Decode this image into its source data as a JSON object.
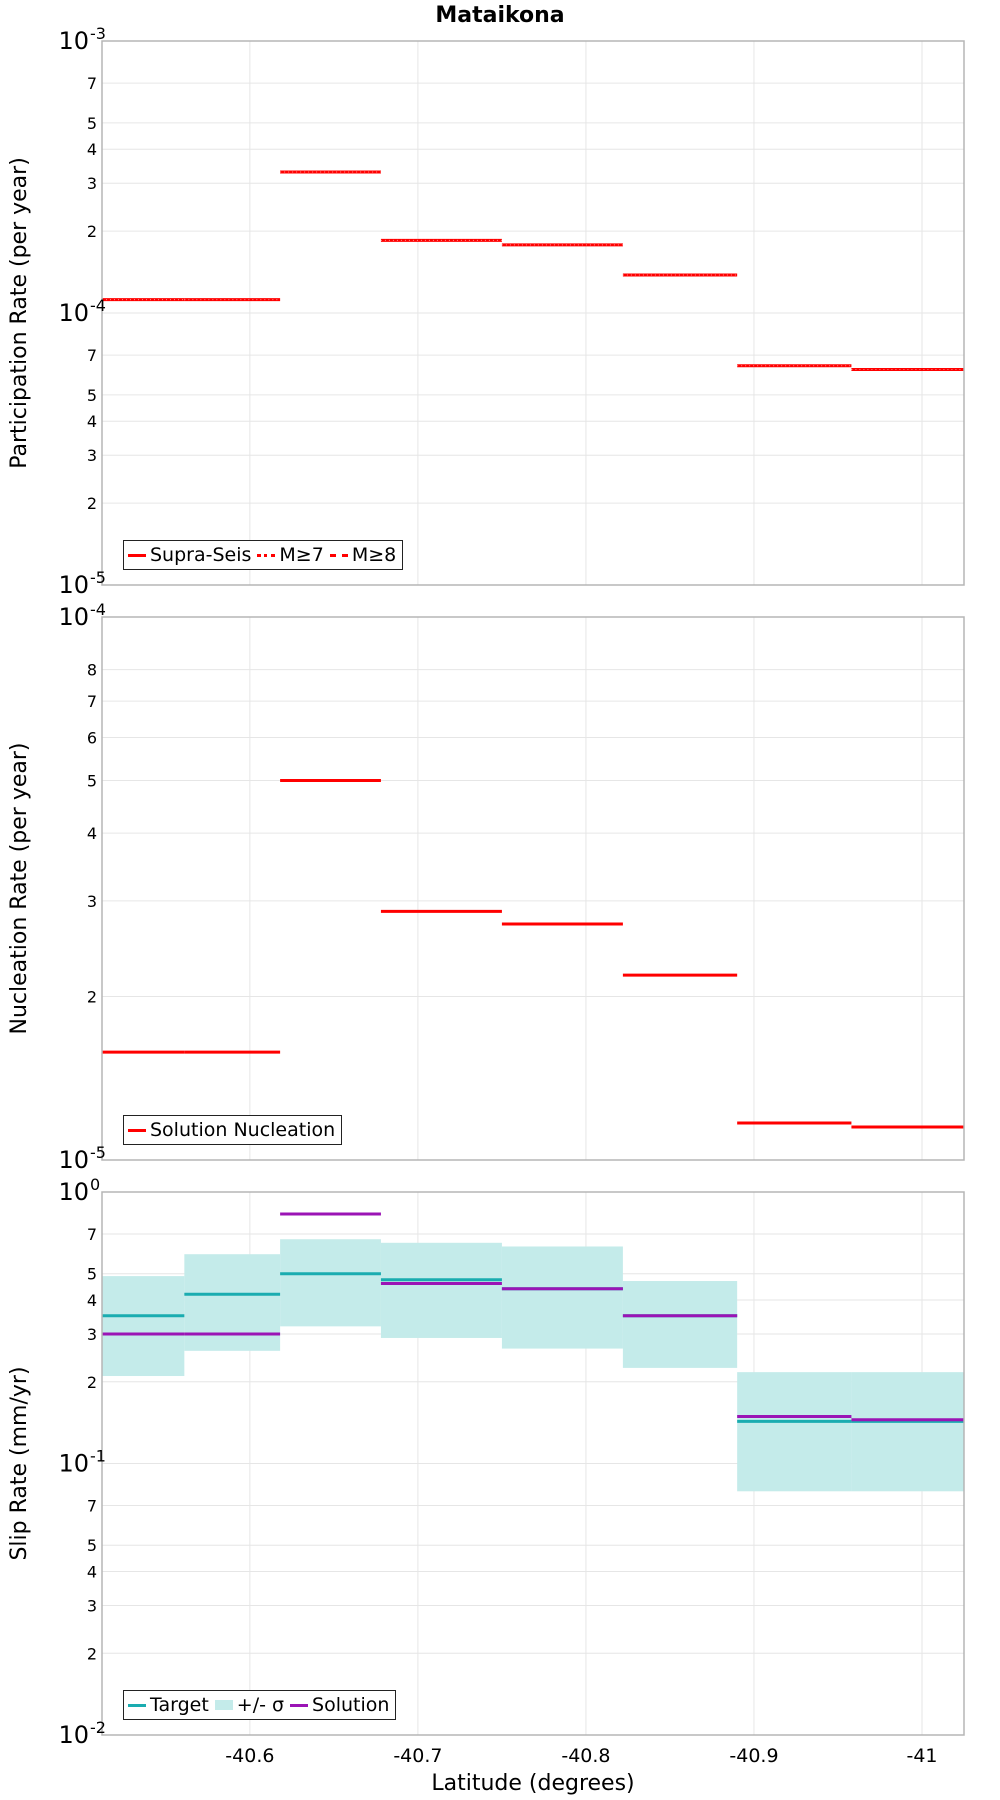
{
  "title": "Mataikona",
  "colors": {
    "red": "#ff0000",
    "target": "#1aacb0",
    "band": "#c4ebea",
    "solution": "#9b14b5",
    "grid": "#e6e6e6",
    "frame": "#b5b5b5"
  },
  "x_axis": {
    "label": "Latitude (degrees)",
    "range": [
      -40.512,
      -41.025
    ],
    "ticks": [
      -40.6,
      -40.7,
      -40.8,
      -40.9,
      -41
    ],
    "tick_labels": [
      "-40.6",
      "-40.7",
      "-40.8",
      "-40.9",
      "-41"
    ]
  },
  "chart_data": [
    {
      "type": "line",
      "step": true,
      "ylabel": "Participation Rate (per year)",
      "yscale": "log",
      "ylim": [
        1e-05,
        0.001
      ],
      "major_ticks": [
        {
          "v": 0.001,
          "base": "10",
          "exp": "-3"
        },
        {
          "v": 0.0001,
          "base": "10",
          "exp": "-4"
        },
        {
          "v": 1e-05,
          "base": "10",
          "exp": "-5"
        }
      ],
      "minor_ticks": [
        {
          "v": 0.0007,
          "label": "7"
        },
        {
          "v": 0.0005,
          "label": "5"
        },
        {
          "v": 0.0004,
          "label": "4"
        },
        {
          "v": 0.0003,
          "label": "3"
        },
        {
          "v": 0.0002,
          "label": "2"
        },
        {
          "v": 7e-05,
          "label": "7"
        },
        {
          "v": 5e-05,
          "label": "5"
        },
        {
          "v": 4e-05,
          "label": "4"
        },
        {
          "v": 3e-05,
          "label": "3"
        },
        {
          "v": 2e-05,
          "label": "2"
        }
      ],
      "segments": [
        {
          "x0": -40.512,
          "x1": -40.561,
          "y": 0.000112
        },
        {
          "x0": -40.561,
          "x1": -40.618,
          "y": 0.000112
        },
        {
          "x0": -40.618,
          "x1": -40.678,
          "y": 0.00033
        },
        {
          "x0": -40.678,
          "x1": -40.75,
          "y": 0.000185
        },
        {
          "x0": -40.75,
          "x1": -40.822,
          "y": 0.000178
        },
        {
          "x0": -40.822,
          "x1": -40.89,
          "y": 0.000138
        },
        {
          "x0": -40.89,
          "x1": -40.958,
          "y": 6.4e-05
        },
        {
          "x0": -40.958,
          "x1": -41.025,
          "y": 6.2e-05
        }
      ],
      "series": [
        {
          "name": "Supra-Seis",
          "style": "solid"
        },
        {
          "name": "M≥7",
          "style": "dotted"
        },
        {
          "name": "M≥8",
          "style": "dashdot"
        }
      ],
      "legend": "bottom-left",
      "grid": true
    },
    {
      "type": "line",
      "step": true,
      "ylabel": "Nucleation Rate (per year)",
      "yscale": "log",
      "ylim": [
        1e-05,
        0.0001
      ],
      "major_ticks": [
        {
          "v": 0.0001,
          "base": "10",
          "exp": "-4"
        },
        {
          "v": 1e-05,
          "base": "10",
          "exp": "-5"
        }
      ],
      "minor_ticks": [
        {
          "v": 8e-05,
          "label": "8"
        },
        {
          "v": 7e-05,
          "label": "7"
        },
        {
          "v": 6e-05,
          "label": "6"
        },
        {
          "v": 5e-05,
          "label": "5"
        },
        {
          "v": 4e-05,
          "label": "4"
        },
        {
          "v": 3e-05,
          "label": "3"
        },
        {
          "v": 2e-05,
          "label": "2"
        }
      ],
      "segments": [
        {
          "x0": -40.512,
          "x1": -40.561,
          "y": 1.58e-05
        },
        {
          "x0": -40.561,
          "x1": -40.618,
          "y": 1.58e-05
        },
        {
          "x0": -40.618,
          "x1": -40.678,
          "y": 5e-05
        },
        {
          "x0": -40.678,
          "x1": -40.75,
          "y": 2.87e-05
        },
        {
          "x0": -40.75,
          "x1": -40.822,
          "y": 2.72e-05
        },
        {
          "x0": -40.822,
          "x1": -40.89,
          "y": 2.19e-05
        },
        {
          "x0": -40.89,
          "x1": -40.958,
          "y": 1.17e-05
        },
        {
          "x0": -40.958,
          "x1": -41.025,
          "y": 1.15e-05
        }
      ],
      "series": [
        {
          "name": "Solution Nucleation",
          "style": "solid"
        }
      ],
      "legend": "bottom-left",
      "grid": true
    },
    {
      "type": "line",
      "step": true,
      "ylabel": "Slip Rate (mm/yr)",
      "yscale": "log",
      "ylim": [
        0.01,
        1
      ],
      "major_ticks": [
        {
          "v": 1,
          "base": "10",
          "exp": "0"
        },
        {
          "v": 0.1,
          "base": "10",
          "exp": "-1"
        },
        {
          "v": 0.01,
          "base": "10",
          "exp": "-2"
        }
      ],
      "minor_ticks": [
        {
          "v": 0.7,
          "label": "7"
        },
        {
          "v": 0.5,
          "label": "5"
        },
        {
          "v": 0.4,
          "label": "4"
        },
        {
          "v": 0.3,
          "label": "3"
        },
        {
          "v": 0.2,
          "label": "2"
        },
        {
          "v": 0.07,
          "label": "7"
        },
        {
          "v": 0.05,
          "label": "5"
        },
        {
          "v": 0.04,
          "label": "4"
        },
        {
          "v": 0.03,
          "label": "3"
        },
        {
          "v": 0.02,
          "label": "2"
        }
      ],
      "segments": [
        {
          "x0": -40.512,
          "x1": -40.561,
          "target": 0.35,
          "lo": 0.21,
          "hi": 0.49,
          "solution": 0.3
        },
        {
          "x0": -40.561,
          "x1": -40.618,
          "target": 0.42,
          "lo": 0.26,
          "hi": 0.59,
          "solution": 0.3
        },
        {
          "x0": -40.618,
          "x1": -40.678,
          "target": 0.5,
          "lo": 0.32,
          "hi": 0.67,
          "solution": 0.83
        },
        {
          "x0": -40.678,
          "x1": -40.75,
          "target": 0.475,
          "lo": 0.29,
          "hi": 0.65,
          "solution": 0.46
        },
        {
          "x0": -40.75,
          "x1": -40.822,
          "target": 0.44,
          "lo": 0.265,
          "hi": 0.63,
          "solution": 0.44
        },
        {
          "x0": -40.822,
          "x1": -40.89,
          "target": 0.35,
          "lo": 0.225,
          "hi": 0.47,
          "solution": 0.35
        },
        {
          "x0": -40.89,
          "x1": -40.958,
          "target": 0.143,
          "lo": 0.079,
          "hi": 0.217,
          "solution": 0.149
        },
        {
          "x0": -40.958,
          "x1": -41.025,
          "target": 0.143,
          "lo": 0.079,
          "hi": 0.217,
          "solution": 0.145
        }
      ],
      "series": [
        {
          "name": "Target",
          "style": "solid"
        },
        {
          "name": "+/- σ",
          "style": "fill"
        },
        {
          "name": "Solution",
          "style": "solid"
        }
      ],
      "legend": "bottom-left",
      "grid": true
    }
  ]
}
